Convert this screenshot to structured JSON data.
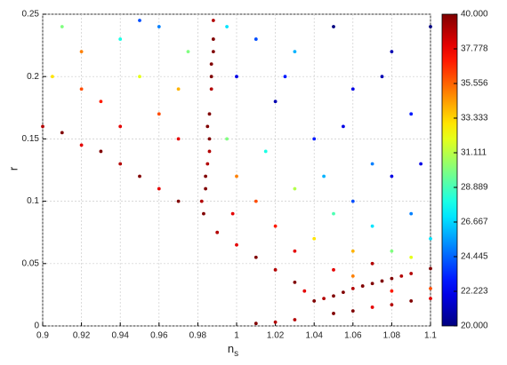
{
  "chart_data": {
    "type": "scatter",
    "xlabel": "n",
    "xlabel_subscript": "s",
    "ylabel": "r",
    "xlim": [
      0.9,
      1.1
    ],
    "xticks": [
      0.9,
      0.92,
      0.94,
      0.96,
      0.98,
      1,
      1.02,
      1.04,
      1.06,
      1.08,
      1.1
    ],
    "ylim": [
      0,
      0.25
    ],
    "yticks": [
      0,
      0.05,
      0.1,
      0.15,
      0.2,
      0.25
    ],
    "grid": true,
    "colormap": "jet",
    "clim": [
      20,
      40
    ],
    "cticks": [
      {
        "value": 20,
        "label": "20.000"
      },
      {
        "value": 22.223,
        "label": "22.223"
      },
      {
        "value": 24.445,
        "label": "24.445"
      },
      {
        "value": 26.667,
        "label": "26.667"
      },
      {
        "value": 28.889,
        "label": "28.889"
      },
      {
        "value": 31.111,
        "label": "31.111"
      },
      {
        "value": 33.333,
        "label": "33.333"
      },
      {
        "value": 35.556,
        "label": "35.556"
      },
      {
        "value": 37.778,
        "label": "37.778"
      },
      {
        "value": 40,
        "label": "40.000"
      }
    ],
    "x": [
      0.983,
      0.984,
      0.985,
      0.986,
      0.986,
      0.987,
      0.987,
      0.988,
      0.988,
      0.982,
      0.984,
      0.985,
      0.987,
      0.986,
      0.988,
      1.04,
      1.05,
      1.06,
      1.07,
      1.08,
      1.09,
      1.1,
      1.045,
      1.065,
      1.085,
      1.055,
      1.075,
      1.01,
      1.03,
      1.05,
      1.07,
      1.09,
      1.02,
      1.06,
      1.08,
      1.1,
      0.9,
      0.91,
      0.92,
      0.93,
      0.94,
      0.95,
      0.96,
      0.97,
      0.99,
      1.0,
      1.01,
      1.02,
      1.03,
      1.035,
      0.905,
      0.91,
      0.92,
      0.93,
      0.94,
      0.95,
      0.96,
      0.96,
      0.97,
      0.975,
      0.94,
      0.92,
      0.95,
      0.97,
      1.0,
      1.01,
      1.02,
      1.03,
      1.04,
      1.05,
      1.06,
      1.07,
      1.08,
      1.09,
      1.1,
      0.995,
      1.0,
      1.01,
      1.02,
      1.03,
      1.04,
      1.05,
      1.06,
      1.07,
      1.08,
      1.09,
      1.1,
      1.06,
      1.08,
      1.015,
      1.045,
      0.995,
      1.095,
      1.075,
      1.025,
      1.055,
      0.998,
      1.03,
      1.05,
      1.09,
      1.1,
      1.07,
      1.08,
      1.06
    ],
    "y": [
      0.09,
      0.11,
      0.13,
      0.15,
      0.17,
      0.19,
      0.21,
      0.23,
      0.245,
      0.1,
      0.12,
      0.16,
      0.2,
      0.14,
      0.22,
      0.02,
      0.024,
      0.03,
      0.034,
      0.038,
      0.042,
      0.046,
      0.022,
      0.032,
      0.04,
      0.027,
      0.036,
      0.002,
      0.005,
      0.01,
      0.015,
      0.02,
      0.003,
      0.012,
      0.017,
      0.022,
      0.16,
      0.155,
      0.145,
      0.14,
      0.13,
      0.12,
      0.11,
      0.1,
      0.075,
      0.065,
      0.055,
      0.045,
      0.035,
      0.028,
      0.2,
      0.24,
      0.22,
      0.18,
      0.23,
      0.2,
      0.17,
      0.24,
      0.15,
      0.22,
      0.16,
      0.19,
      0.245,
      0.19,
      0.2,
      0.23,
      0.18,
      0.22,
      0.15,
      0.24,
      0.19,
      0.13,
      0.22,
      0.17,
      0.24,
      0.15,
      0.12,
      0.1,
      0.08,
      0.11,
      0.07,
      0.09,
      0.06,
      0.08,
      0.06,
      0.09,
      0.07,
      0.1,
      0.12,
      0.14,
      0.12,
      0.24,
      0.13,
      0.2,
      0.2,
      0.16,
      0.09,
      0.06,
      0.045,
      0.055,
      0.03,
      0.05,
      0.028,
      0.04
    ],
    "values": [
      40,
      40,
      39,
      40,
      40,
      39,
      40,
      40,
      39,
      39,
      40,
      40,
      40,
      39,
      40,
      40,
      40,
      39,
      40,
      40,
      39,
      40,
      39,
      40,
      39,
      40,
      40,
      40,
      39,
      40,
      38,
      40,
      39,
      40,
      39,
      38,
      39,
      40,
      38,
      40,
      39,
      40,
      38,
      40,
      39,
      38,
      40,
      39,
      40,
      38,
      33,
      30,
      35,
      37,
      28,
      32,
      36,
      25,
      38,
      30,
      38,
      36,
      24,
      34,
      22,
      24,
      21,
      26,
      23,
      20,
      22,
      25,
      21,
      23,
      20,
      30,
      35,
      36,
      37,
      31,
      33,
      29,
      34,
      27,
      30,
      25,
      27,
      24,
      22,
      28,
      26,
      27,
      22,
      21,
      23,
      22,
      38,
      38,
      38,
      32,
      36,
      39,
      37,
      35
    ]
  }
}
